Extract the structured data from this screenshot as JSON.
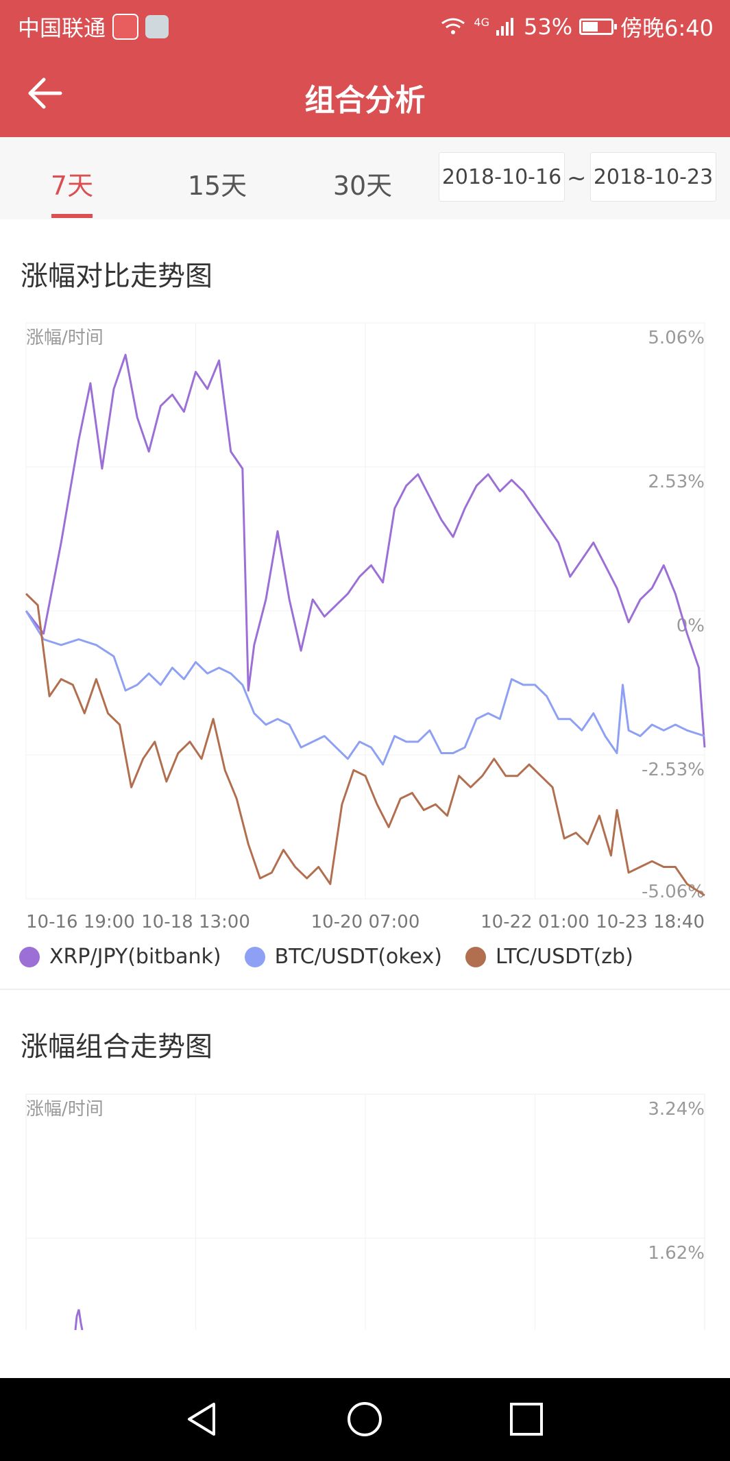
{
  "status_bar": {
    "carrier": "中国联通",
    "network": "4G",
    "battery": "53%",
    "time": "傍晚6:40"
  },
  "app_bar": {
    "title": "组合分析",
    "back_icon": "arrow-left-icon"
  },
  "period_tabs": [
    {
      "label": "7天",
      "active": true
    },
    {
      "label": "15天",
      "active": false
    },
    {
      "label": "30天",
      "active": false
    }
  ],
  "date_range": {
    "start": "2018-10-16",
    "separator": "~",
    "end": "2018-10-23"
  },
  "colors": {
    "accent": "#d94f52",
    "xrp": "#9b6fd6",
    "btc": "#8ea0f3",
    "ltc": "#b26f4f"
  },
  "section1_title": "涨幅对比走势图",
  "section2_title": "涨幅组合走势图",
  "chart_data": [
    {
      "type": "line",
      "title": "涨幅对比走势图",
      "ylabel": "涨幅/时间",
      "ylim": [
        -5.06,
        5.06
      ],
      "y_ticks": [
        "5.06%",
        "2.53%",
        "0%",
        "-2.53%",
        "-5.06%"
      ],
      "x_ticks": [
        "10-16 19:00",
        "10-18 13:00",
        "10-20 07:00",
        "10-22 01:00",
        "10-23 18:40"
      ],
      "x_range_hours": [
        0,
        167.7
      ],
      "legend_position": "bottom",
      "series": [
        {
          "name": "XRP/JPY(bitbank)",
          "color": "#9b6fd6",
          "points": [
            [
              0,
              0
            ],
            [
              3,
              -0.4
            ],
            [
              6,
              1.2
            ],
            [
              9,
              3.0
            ],
            [
              11,
              4.0
            ],
            [
              13,
              2.5
            ],
            [
              15,
              3.9
            ],
            [
              17,
              4.5
            ],
            [
              19,
              3.4
            ],
            [
              21,
              2.8
            ],
            [
              23,
              3.6
            ],
            [
              25,
              3.8
            ],
            [
              27,
              3.5
            ],
            [
              29,
              4.2
            ],
            [
              31,
              3.9
            ],
            [
              33,
              4.4
            ],
            [
              35,
              2.8
            ],
            [
              37,
              2.5
            ],
            [
              38,
              -1.4
            ],
            [
              39,
              -0.6
            ],
            [
              41,
              0.2
            ],
            [
              43,
              1.4
            ],
            [
              45,
              0.2
            ],
            [
              47,
              -0.7
            ],
            [
              49,
              0.2
            ],
            [
              51,
              -0.1
            ],
            [
              53,
              0.1
            ],
            [
              55,
              0.3
            ],
            [
              57,
              0.6
            ],
            [
              59,
              0.8
            ],
            [
              61,
              0.5
            ],
            [
              63,
              1.8
            ],
            [
              65,
              2.2
            ],
            [
              67,
              2.4
            ],
            [
              69,
              2.0
            ],
            [
              71,
              1.6
            ],
            [
              73,
              1.3
            ],
            [
              75,
              1.8
            ],
            [
              77,
              2.2
            ],
            [
              79,
              2.4
            ],
            [
              81,
              2.1
            ],
            [
              83,
              2.3
            ],
            [
              85,
              2.1
            ],
            [
              87,
              1.8
            ],
            [
              89,
              1.5
            ],
            [
              91,
              1.2
            ],
            [
              93,
              0.6
            ],
            [
              95,
              0.9
            ],
            [
              97,
              1.2
            ],
            [
              99,
              0.8
            ],
            [
              101,
              0.4
            ],
            [
              103,
              -0.2
            ],
            [
              105,
              0.2
            ],
            [
              107,
              0.4
            ],
            [
              109,
              0.8
            ],
            [
              111,
              0.3
            ],
            [
              113,
              -0.4
            ],
            [
              115,
              -1.0
            ],
            [
              116,
              -2.4
            ]
          ]
        },
        {
          "name": "BTC/USDT(okex)",
          "color": "#8ea0f3",
          "points": [
            [
              0,
              0
            ],
            [
              3,
              -0.5
            ],
            [
              6,
              -0.6
            ],
            [
              9,
              -0.5
            ],
            [
              12,
              -0.6
            ],
            [
              15,
              -0.8
            ],
            [
              17,
              -1.4
            ],
            [
              19,
              -1.3
            ],
            [
              21,
              -1.1
            ],
            [
              23,
              -1.3
            ],
            [
              25,
              -1.0
            ],
            [
              27,
              -1.2
            ],
            [
              29,
              -0.9
            ],
            [
              31,
              -1.1
            ],
            [
              33,
              -1.0
            ],
            [
              35,
              -1.1
            ],
            [
              37,
              -1.3
            ],
            [
              39,
              -1.8
            ],
            [
              41,
              -2.0
            ],
            [
              43,
              -1.9
            ],
            [
              45,
              -2.0
            ],
            [
              47,
              -2.4
            ],
            [
              49,
              -2.3
            ],
            [
              51,
              -2.2
            ],
            [
              53,
              -2.4
            ],
            [
              55,
              -2.6
            ],
            [
              57,
              -2.3
            ],
            [
              59,
              -2.4
            ],
            [
              61,
              -2.7
            ],
            [
              63,
              -2.2
            ],
            [
              65,
              -2.3
            ],
            [
              67,
              -2.3
            ],
            [
              69,
              -2.1
            ],
            [
              71,
              -2.5
            ],
            [
              73,
              -2.5
            ],
            [
              75,
              -2.4
            ],
            [
              77,
              -1.9
            ],
            [
              79,
              -1.8
            ],
            [
              81,
              -1.9
            ],
            [
              83,
              -1.2
            ],
            [
              85,
              -1.3
            ],
            [
              87,
              -1.3
            ],
            [
              89,
              -1.5
            ],
            [
              91,
              -1.9
            ],
            [
              93,
              -1.9
            ],
            [
              95,
              -2.1
            ],
            [
              97,
              -1.8
            ],
            [
              99,
              -2.2
            ],
            [
              101,
              -2.5
            ],
            [
              102,
              -1.3
            ],
            [
              103,
              -2.1
            ],
            [
              105,
              -2.2
            ],
            [
              107,
              -2.0
            ],
            [
              109,
              -2.1
            ],
            [
              111,
              -2.0
            ],
            [
              113,
              -2.1
            ],
            [
              116,
              -2.2
            ]
          ]
        },
        {
          "name": "LTC/USDT(zb)",
          "color": "#b26f4f",
          "points": [
            [
              0,
              0.3
            ],
            [
              2,
              0.1
            ],
            [
              4,
              -1.5
            ],
            [
              6,
              -1.2
            ],
            [
              8,
              -1.3
            ],
            [
              10,
              -1.8
            ],
            [
              12,
              -1.2
            ],
            [
              14,
              -1.8
            ],
            [
              16,
              -2.0
            ],
            [
              18,
              -3.1
            ],
            [
              20,
              -2.6
            ],
            [
              22,
              -2.3
            ],
            [
              24,
              -3.0
            ],
            [
              26,
              -2.5
            ],
            [
              28,
              -2.3
            ],
            [
              30,
              -2.6
            ],
            [
              32,
              -1.9
            ],
            [
              34,
              -2.8
            ],
            [
              36,
              -3.3
            ],
            [
              38,
              -4.1
            ],
            [
              40,
              -4.7
            ],
            [
              42,
              -4.6
            ],
            [
              44,
              -4.2
            ],
            [
              46,
              -4.5
            ],
            [
              48,
              -4.7
            ],
            [
              50,
              -4.5
            ],
            [
              52,
              -4.8
            ],
            [
              54,
              -3.4
            ],
            [
              56,
              -2.8
            ],
            [
              58,
              -2.9
            ],
            [
              60,
              -3.4
            ],
            [
              62,
              -3.8
            ],
            [
              64,
              -3.3
            ],
            [
              66,
              -3.2
            ],
            [
              68,
              -3.5
            ],
            [
              70,
              -3.4
            ],
            [
              72,
              -3.6
            ],
            [
              74,
              -2.9
            ],
            [
              76,
              -3.1
            ],
            [
              78,
              -2.9
            ],
            [
              80,
              -2.6
            ],
            [
              82,
              -2.9
            ],
            [
              84,
              -2.9
            ],
            [
              86,
              -2.7
            ],
            [
              88,
              -2.9
            ],
            [
              90,
              -3.1
            ],
            [
              92,
              -4.0
            ],
            [
              94,
              -3.9
            ],
            [
              96,
              -4.1
            ],
            [
              98,
              -3.6
            ],
            [
              100,
              -4.3
            ],
            [
              101,
              -3.5
            ],
            [
              103,
              -4.6
            ],
            [
              105,
              -4.5
            ],
            [
              107,
              -4.4
            ],
            [
              109,
              -4.5
            ],
            [
              111,
              -4.5
            ],
            [
              113,
              -4.8
            ],
            [
              116,
              -5.0
            ]
          ]
        }
      ]
    },
    {
      "type": "line",
      "title": "涨幅组合走势图",
      "ylabel": "涨幅/时间",
      "ylim": [
        0,
        3.24
      ],
      "y_ticks": [
        "3.24%",
        "1.62%"
      ],
      "series": []
    }
  ]
}
